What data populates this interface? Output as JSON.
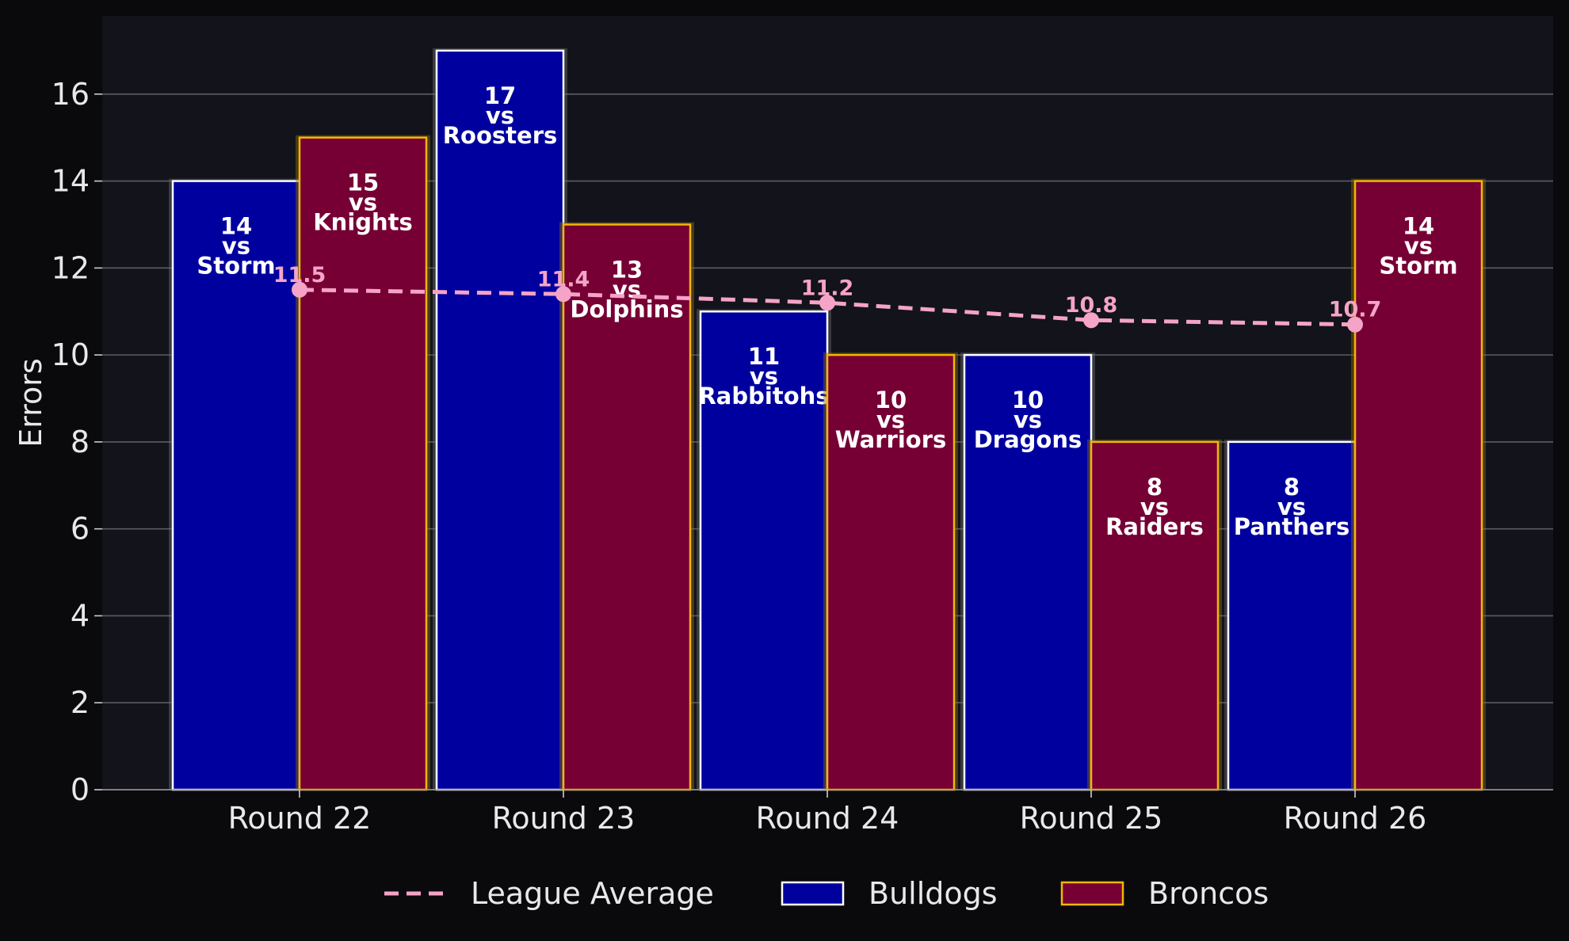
{
  "chart_data": {
    "type": "bar",
    "ylabel": "Errors",
    "ylim": [
      0,
      17.8
    ],
    "yticks": [
      0,
      2,
      4,
      6,
      8,
      10,
      12,
      14,
      16
    ],
    "grid": "horizontal",
    "legend_position": "bottom-center",
    "categories": [
      "Round 22",
      "Round 23",
      "Round 24",
      "Round 25",
      "Round 26"
    ],
    "series": [
      {
        "name": "Bulldogs",
        "color": "#00009e",
        "edge_color": "#ffffff",
        "values": [
          14,
          17,
          11,
          10,
          8
        ],
        "labels": [
          [
            "14",
            "vs",
            "Storm"
          ],
          [
            "17",
            "vs",
            "Roosters"
          ],
          [
            "11",
            "vs",
            "Rabbitohs"
          ],
          [
            "10",
            "vs",
            "Dragons"
          ],
          [
            "8",
            "vs",
            "Panthers"
          ]
        ]
      },
      {
        "name": "Broncos",
        "color": "#760034",
        "edge_color": "#f2b705",
        "values": [
          15,
          13,
          10,
          8,
          14
        ],
        "labels": [
          [
            "15",
            "vs",
            "Knights"
          ],
          [
            "13",
            "vs",
            "Dolphins"
          ],
          [
            "10",
            "vs",
            "Warriors"
          ],
          [
            "8",
            "vs",
            "Raiders"
          ],
          [
            "14",
            "vs",
            "Storm"
          ]
        ]
      }
    ],
    "line": {
      "name": "League Average",
      "color": "#f5a3c7",
      "style": "dashed",
      "values": [
        11.5,
        11.4,
        11.2,
        10.8,
        10.7
      ],
      "labels": [
        "11.5",
        "11.4",
        "11.2",
        "10.8",
        "10.7"
      ]
    },
    "legend": [
      "League Average",
      "Bulldogs",
      "Broncos"
    ]
  }
}
